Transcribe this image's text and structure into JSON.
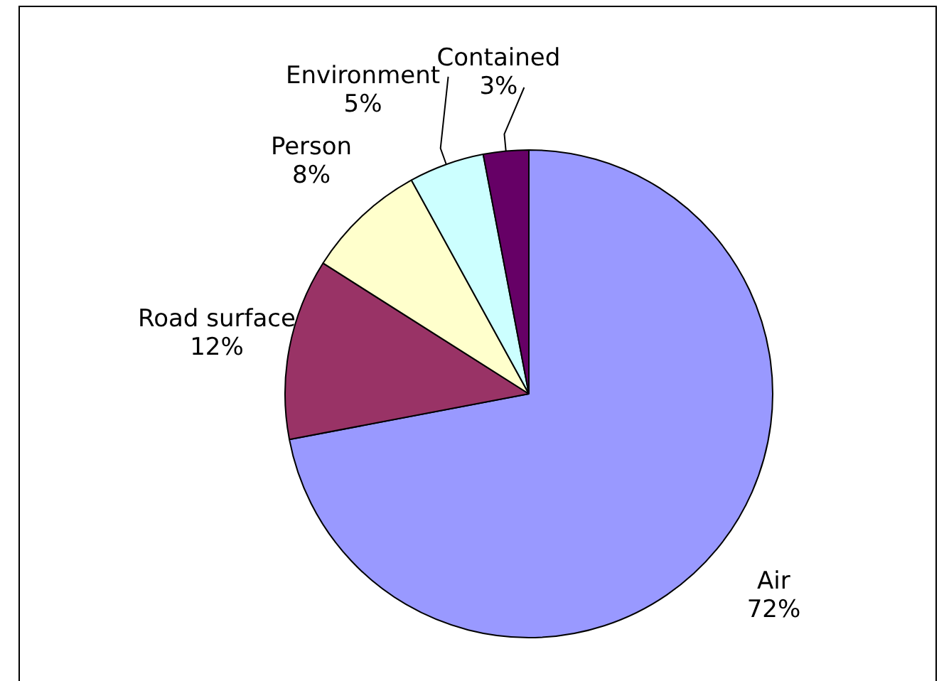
{
  "chart_data": {
    "type": "pie",
    "categories": [
      "Air",
      "Road surface",
      "Person",
      "Environment",
      "Contained"
    ],
    "values": [
      72,
      12,
      8,
      5,
      3
    ],
    "value_labels": [
      "72%",
      "12%",
      "8%",
      "5%",
      "3%"
    ],
    "colors": [
      "#9999ff",
      "#993366",
      "#ffffcc",
      "#ccffff",
      "#660066"
    ],
    "legend": false
  }
}
